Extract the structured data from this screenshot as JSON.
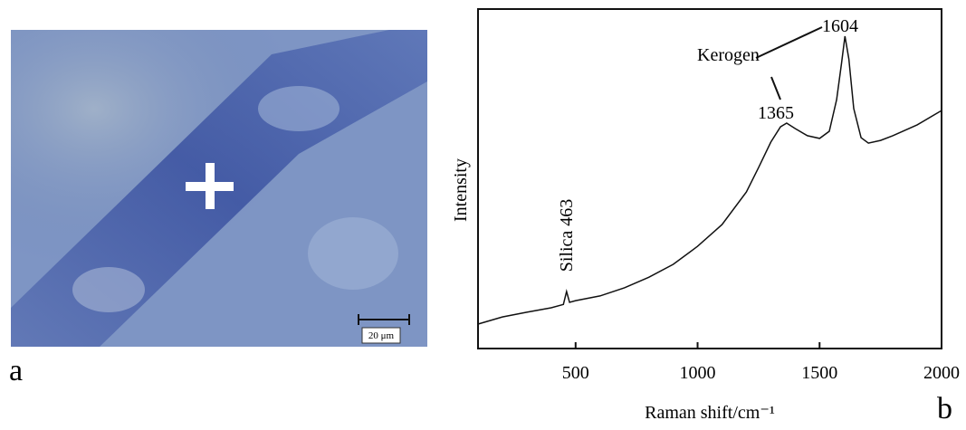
{
  "panel_labels": [
    "a",
    "b"
  ],
  "image": {
    "scale_bar": "20 μm"
  },
  "chart_data": {
    "type": "line",
    "x_label": "Raman shift/cm⁻¹",
    "y_label": "Intensity",
    "x": [
      100,
      200,
      300,
      400,
      450,
      463,
      475,
      500,
      600,
      700,
      800,
      900,
      1000,
      1100,
      1200,
      1250,
      1300,
      1340,
      1365,
      1400,
      1450,
      1500,
      1540,
      1570,
      1590,
      1604,
      1620,
      1640,
      1670,
      1700,
      1750,
      1800,
      1900,
      2000
    ],
    "series": [
      {
        "color": "#111111",
        "values": [
          7.2,
          9.3,
          10.7,
          12,
          13,
          16.8,
          13.6,
          14.1,
          15.5,
          17.9,
          21,
          24.8,
          30.1,
          36.5,
          46.1,
          53.3,
          60.8,
          65.3,
          66.4,
          64.8,
          62.7,
          61.9,
          64,
          73.3,
          84,
          92,
          85.3,
          70.7,
          62.1,
          60.5,
          61.3,
          62.7,
          65.9,
          70.1
        ]
      }
    ],
    "xlim": [
      100,
      2000
    ],
    "ylim": [
      0,
      100
    ],
    "xticks": [
      500,
      1000,
      1500,
      2000
    ],
    "annotations": [
      "Silica 463",
      "Kerogen",
      "1365",
      "1604"
    ]
  }
}
